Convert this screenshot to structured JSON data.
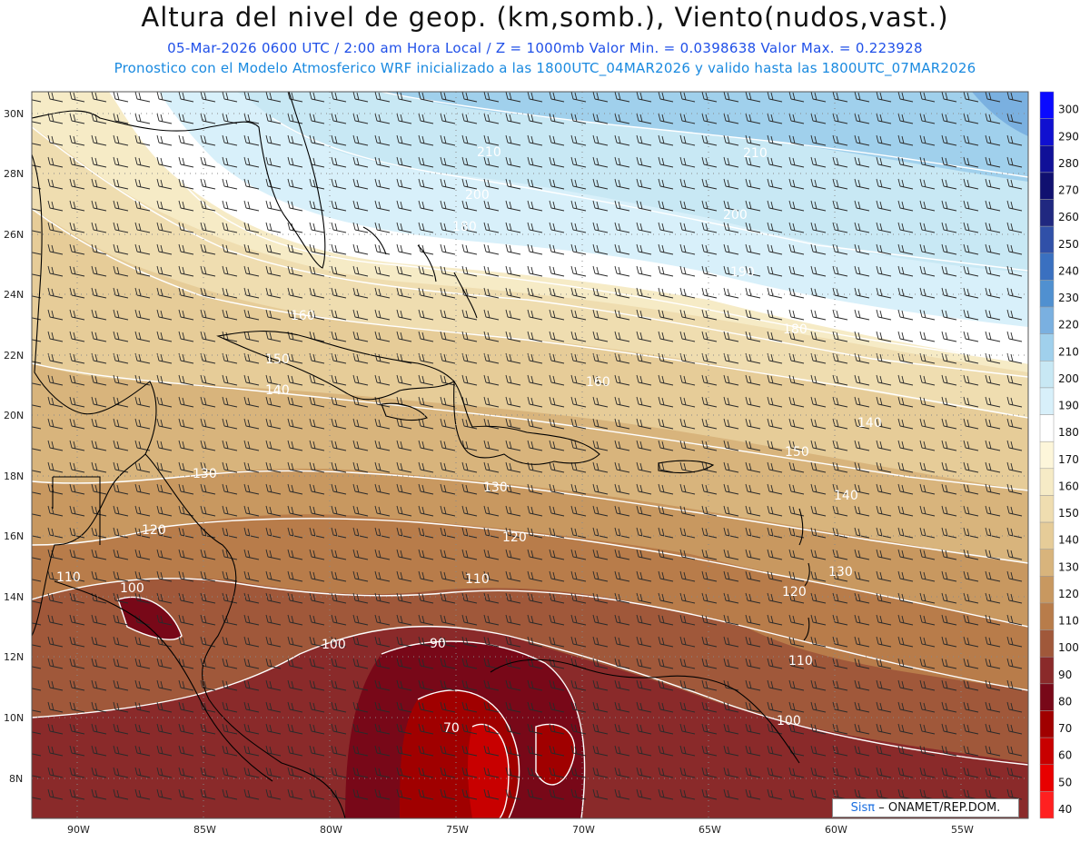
{
  "title": "Altura del nivel de geop. (km,somb.), Viento(nudos,vast.)",
  "subtitle_line1": "05-Mar-2026  0600 UTC / 2:00 am Hora Local / Z = 1000mb  Valor Min. = 0.0398638  Valor Max. = 0.223928",
  "subtitle_line2": "Pronostico con el Modelo Atmosferico WRF inicializado a las 1800UTC_04MAR2026 y valido hasta las  1800UTC_07MAR2026",
  "lat_labels": [
    "30N",
    "28N",
    "26N",
    "24N",
    "22N",
    "20N",
    "18N",
    "16N",
    "14N",
    "12N",
    "10N",
    "8N"
  ],
  "lon_labels": [
    "90W",
    "85W",
    "80W",
    "75W",
    "70W",
    "65W",
    "60W",
    "55W"
  ],
  "colorbar": {
    "labels": [
      "300",
      "290",
      "280",
      "270",
      "260",
      "250",
      "240",
      "230",
      "220",
      "210",
      "200",
      "190",
      "180",
      "170",
      "160",
      "150",
      "140",
      "130",
      "120",
      "110",
      "100",
      "90",
      "80",
      "70",
      "60",
      "50",
      "40"
    ],
    "colors": [
      "#0a0aff",
      "#1010d0",
      "#101098",
      "#101070",
      "#202880",
      "#3050a8",
      "#3a70c0",
      "#5090d0",
      "#7ab0e0",
      "#a0d0ec",
      "#c8e8f4",
      "#d8f0fa",
      "#ffffff",
      "#fdf6da",
      "#f6ebc6",
      "#efddb0",
      "#e6cc98",
      "#d8b47c",
      "#c89860",
      "#b87c4a",
      "#a0583a",
      "#8a2a2a",
      "#780818",
      "#a00000",
      "#c80000",
      "#e80000",
      "#ff2020"
    ]
  },
  "contour_labels": [
    {
      "text": "210"
    },
    {
      "text": "210"
    },
    {
      "text": "200"
    },
    {
      "text": "200"
    },
    {
      "text": "190"
    },
    {
      "text": "180"
    },
    {
      "text": "180"
    },
    {
      "text": "160"
    },
    {
      "text": "160"
    },
    {
      "text": "150"
    },
    {
      "text": "140"
    },
    {
      "text": "140"
    },
    {
      "text": "150"
    },
    {
      "text": "130"
    },
    {
      "text": "130"
    },
    {
      "text": "140"
    },
    {
      "text": "120"
    },
    {
      "text": "120"
    },
    {
      "text": "130"
    },
    {
      "text": "120"
    },
    {
      "text": "110"
    },
    {
      "text": "110"
    },
    {
      "text": "110"
    },
    {
      "text": "100"
    },
    {
      "text": "100"
    },
    {
      "text": "100"
    },
    {
      "text": "90"
    },
    {
      "text": "70"
    }
  ],
  "credit": {
    "logo": "Sisπ",
    "text": "– ONAMET/REP.DOM."
  }
}
